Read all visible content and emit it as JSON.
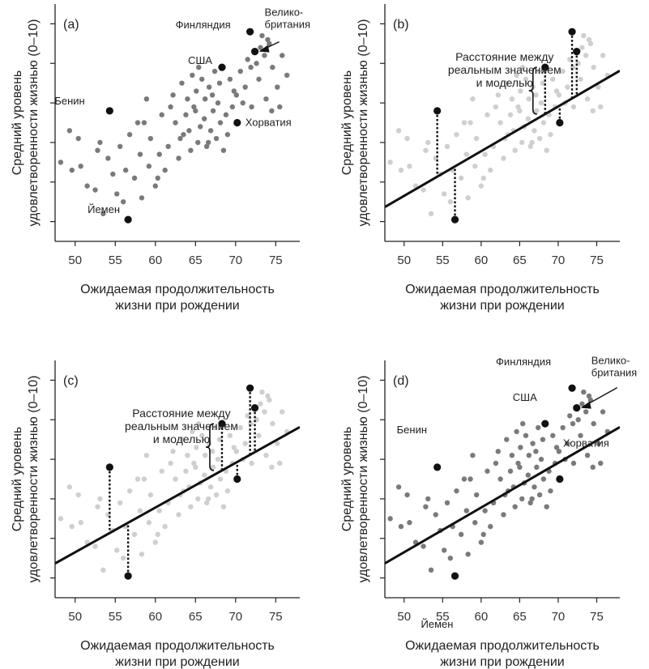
{
  "chart_data": [
    {
      "panel": "(a)",
      "type": "scatter",
      "xlabel": [
        "Ожидаемая продолжительность",
        "жизни при рождении"
      ],
      "ylabel": [
        "Средний уровень",
        "удовлетворенности жизнью (0–10)"
      ],
      "xticks": [
        50,
        55,
        60,
        65,
        70,
        75
      ],
      "xlim": [
        47.5,
        78
      ],
      "ylim": [
        2.5,
        8.5
      ],
      "point_color": "#7a7a7a",
      "show_labels": true,
      "show_fit": false,
      "show_residuals": false
    },
    {
      "panel": "(b)",
      "type": "scatter",
      "xlabel": [
        "Ожидаемая продолжительность",
        "жизни при рождении"
      ],
      "ylabel": [
        "Средний уровень",
        "удовлетворенности жизнью (0–10)"
      ],
      "xticks": [
        50,
        55,
        60,
        65,
        70,
        75
      ],
      "xlim": [
        47.5,
        78
      ],
      "ylim": [
        2.5,
        8.5
      ],
      "point_color": "#cfcfcf",
      "show_labels": false,
      "show_fit": true,
      "show_residuals": true,
      "annotation": [
        "Расстояние между",
        "реальным значением",
        "и моделью"
      ]
    },
    {
      "panel": "(c)",
      "type": "scatter",
      "xlabel": [
        "Ожидаемая продолжительность",
        "жизни при рождении"
      ],
      "ylabel": [
        "Средний уровень",
        "удовлетворенности жизнью (0–10)"
      ],
      "xticks": [
        50,
        55,
        60,
        65,
        70,
        75
      ],
      "xlim": [
        47.5,
        78
      ],
      "ylim": [
        2.5,
        8.5
      ],
      "point_color": "#cfcfcf",
      "show_labels": false,
      "show_fit": true,
      "show_residuals": true,
      "annotation": [
        "Расстояние между",
        "реальным значением",
        "и моделью"
      ]
    },
    {
      "panel": "(d)",
      "type": "scatter",
      "xlabel": [
        "Ожидаемая продолжительность",
        "жизни при рождении"
      ],
      "ylabel": [
        "Средний уровень",
        "удовлетворенности жизнью (0–10)"
      ],
      "xticks": [
        50,
        55,
        60,
        65,
        70,
        75
      ],
      "xlim": [
        47.5,
        78
      ],
      "ylim": [
        2.5,
        8.5
      ],
      "point_color": "#7a7a7a",
      "show_labels": true,
      "show_fit": true,
      "show_residuals": false
    }
  ],
  "fit_line": {
    "intercept": -2.0,
    "slope": 0.113
  },
  "highlighted_countries": [
    {
      "name": "Финляндия",
      "x": 71.8,
      "y": 7.8
    },
    {
      "name": "Велико-\nбритания",
      "x": 72.4,
      "y": 7.3
    },
    {
      "name": "США",
      "x": 68.3,
      "y": 6.9
    },
    {
      "name": "Бенин",
      "x": 54.3,
      "y": 5.8
    },
    {
      "name": "Хорватия",
      "x": 70.2,
      "y": 5.5
    },
    {
      "name": "Йемен",
      "x": 56.6,
      "y": 3.05
    }
  ],
  "points": [
    [
      52.5,
      3.8
    ],
    [
      55.2,
      3.7
    ],
    [
      53.5,
      3.2
    ],
    [
      51.5,
      3.9
    ],
    [
      49.6,
      4.3
    ],
    [
      48.2,
      4.5
    ],
    [
      50.7,
      4.4
    ],
    [
      52.8,
      4.8
    ],
    [
      54.1,
      4.6
    ],
    [
      55.6,
      4.9
    ],
    [
      56.3,
      4.3
    ],
    [
      57.4,
      4.1
    ],
    [
      58.1,
      4.7
    ],
    [
      59.2,
      4.4
    ],
    [
      60.3,
      4.1
    ],
    [
      61.2,
      4.3
    ],
    [
      58.6,
      5.5
    ],
    [
      57.8,
      5.5
    ],
    [
      59.4,
      5.1
    ],
    [
      60.5,
      4.7
    ],
    [
      61.6,
      4.9
    ],
    [
      62.5,
      5.5
    ],
    [
      63.1,
      5.1
    ],
    [
      63.8,
      5.7
    ],
    [
      64.2,
      5.3
    ],
    [
      64.8,
      5.9
    ],
    [
      65.3,
      5.0
    ],
    [
      65.6,
      5.4
    ],
    [
      66.1,
      5.6
    ],
    [
      66.4,
      4.9
    ],
    [
      66.9,
      5.3
    ],
    [
      67.2,
      5.8
    ],
    [
      67.6,
      5.1
    ],
    [
      68.1,
      5.5
    ],
    [
      68.5,
      4.8
    ],
    [
      69.0,
      5.2
    ],
    [
      62.2,
      6.2
    ],
    [
      63.3,
      6.5
    ],
    [
      64.0,
      6.1
    ],
    [
      64.6,
      6.7
    ],
    [
      65.1,
      6.3
    ],
    [
      65.8,
      6.6
    ],
    [
      66.2,
      6.1
    ],
    [
      66.7,
      6.4
    ],
    [
      67.1,
      6.2
    ],
    [
      67.4,
      6.8
    ],
    [
      68.0,
      6.5
    ],
    [
      69.3,
      6.6
    ],
    [
      70.1,
      6.2
    ],
    [
      70.6,
      6.8
    ],
    [
      71.2,
      6.4
    ],
    [
      71.9,
      6.9
    ],
    [
      72.6,
      7.0
    ],
    [
      73.1,
      7.4
    ],
    [
      73.6,
      7.2
    ],
    [
      74.2,
      7.5
    ],
    [
      74.6,
      6.9
    ],
    [
      75.2,
      6.4
    ],
    [
      76.4,
      6.7
    ],
    [
      73.8,
      6.1
    ],
    [
      72.0,
      5.9
    ],
    [
      74.5,
      5.8
    ],
    [
      75.5,
      5.9
    ],
    [
      49.3,
      5.3
    ],
    [
      50.4,
      5.1
    ],
    [
      53.1,
      5.0
    ],
    [
      56.8,
      5.2
    ],
    [
      58.9,
      6.1
    ],
    [
      60.8,
      5.7
    ],
    [
      61.9,
      5.9
    ],
    [
      63.5,
      5.2
    ],
    [
      65.0,
      5.8
    ],
    [
      67.8,
      6.0
    ],
    [
      69.6,
      5.9
    ],
    [
      70.9,
      6.0
    ],
    [
      71.5,
      7.1
    ],
    [
      73.3,
      7.7
    ],
    [
      74.0,
      7.6
    ],
    [
      72.9,
      6.6
    ],
    [
      75.8,
      7.2
    ],
    [
      56.0,
      3.5
    ],
    [
      58.3,
      3.6
    ],
    [
      60.0,
      3.9
    ],
    [
      54.7,
      4.2
    ],
    [
      62.9,
      4.6
    ],
    [
      64.4,
      4.8
    ],
    [
      66.6,
      5.0
    ],
    [
      68.8,
      5.7
    ],
    [
      69.8,
      6.3
    ],
    [
      65.4,
      6.9
    ]
  ]
}
